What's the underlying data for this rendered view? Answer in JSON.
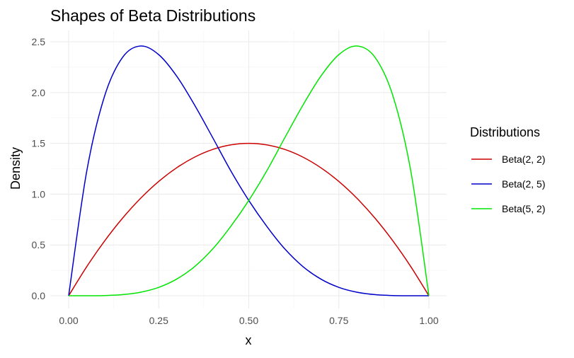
{
  "chart_data": {
    "type": "line",
    "title": "Shapes of Beta Distributions",
    "xlabel": "x",
    "ylabel": "Density",
    "xlim": [
      0,
      1
    ],
    "ylim": [
      0,
      2.5
    ],
    "x_ticks": [
      0,
      0.25,
      0.5,
      0.75,
      1.0
    ],
    "x_tick_labels": [
      "0.00",
      "0.25",
      "0.50",
      "0.75",
      "1.00"
    ],
    "y_ticks": [
      0,
      0.5,
      1.0,
      1.5,
      2.0,
      2.5
    ],
    "y_tick_labels": [
      "0.0",
      "0.5",
      "1.0",
      "1.5",
      "2.0",
      "2.5"
    ],
    "grid": true,
    "legend": {
      "title": "Distributions",
      "position": "right"
    },
    "x": [
      0,
      0.05,
      0.1,
      0.15,
      0.2,
      0.25,
      0.3,
      0.35,
      0.4,
      0.45,
      0.5,
      0.55,
      0.6,
      0.65,
      0.7,
      0.75,
      0.8,
      0.85,
      0.9,
      0.95,
      1.0
    ],
    "series": [
      {
        "name": "Beta(2, 2)",
        "color": "#cc0000",
        "values": [
          0,
          0.285,
          0.54,
          0.765,
          0.96,
          1.125,
          1.26,
          1.365,
          1.44,
          1.485,
          1.5,
          1.485,
          1.44,
          1.365,
          1.26,
          1.125,
          0.96,
          0.765,
          0.54,
          0.285,
          0
        ]
      },
      {
        "name": "Beta(2, 5)",
        "color": "#0000cc",
        "values": [
          0,
          1.222,
          1.968,
          2.348,
          2.458,
          2.373,
          2.161,
          1.874,
          1.555,
          1.23,
          0.938,
          0.683,
          0.461,
          0.288,
          0.164,
          0.0825,
          0.035,
          0.0111,
          0.0018,
          0.00012,
          0
        ]
      },
      {
        "name": "Beta(5, 2)",
        "color": "#00e600",
        "values": [
          0,
          0.00012,
          0.0018,
          0.0111,
          0.035,
          0.0825,
          0.164,
          0.288,
          0.461,
          0.683,
          0.938,
          1.23,
          1.555,
          1.874,
          2.161,
          2.373,
          2.458,
          2.348,
          1.968,
          1.222,
          0
        ]
      }
    ]
  }
}
